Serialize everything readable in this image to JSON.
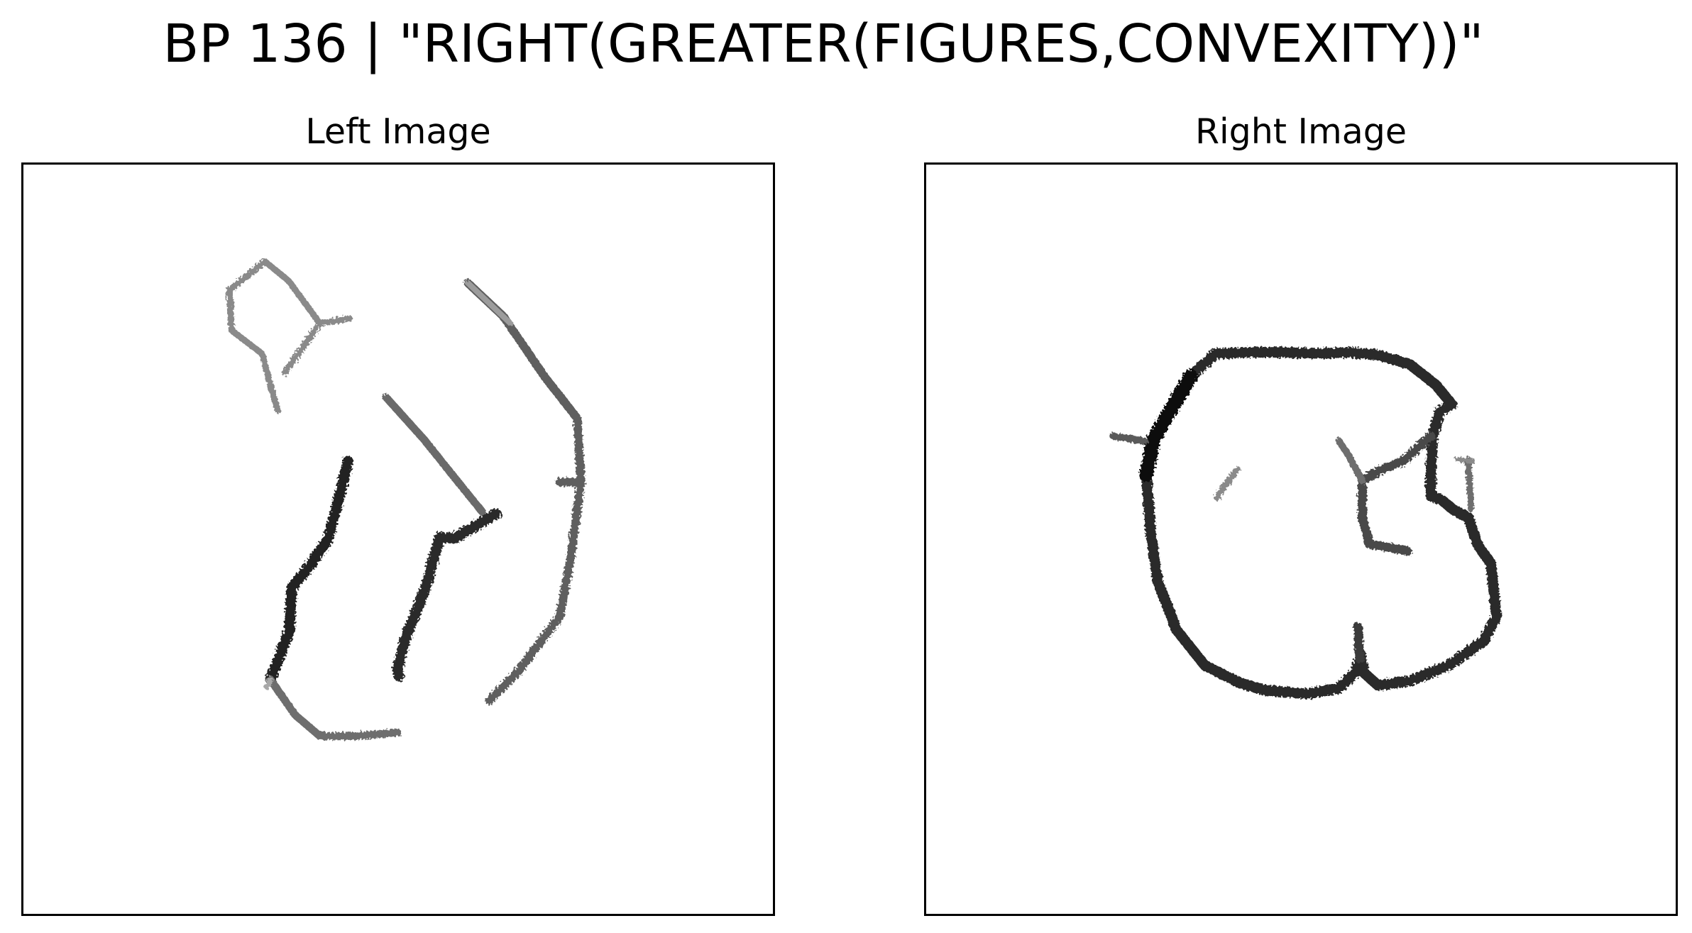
{
  "figure": {
    "title": "BP 136 | \"RIGHT(GREATER(FIGURES,CONVEXITY))\""
  },
  "panels": [
    {
      "title": "Left Image"
    },
    {
      "title": "Right Image"
    }
  ]
}
